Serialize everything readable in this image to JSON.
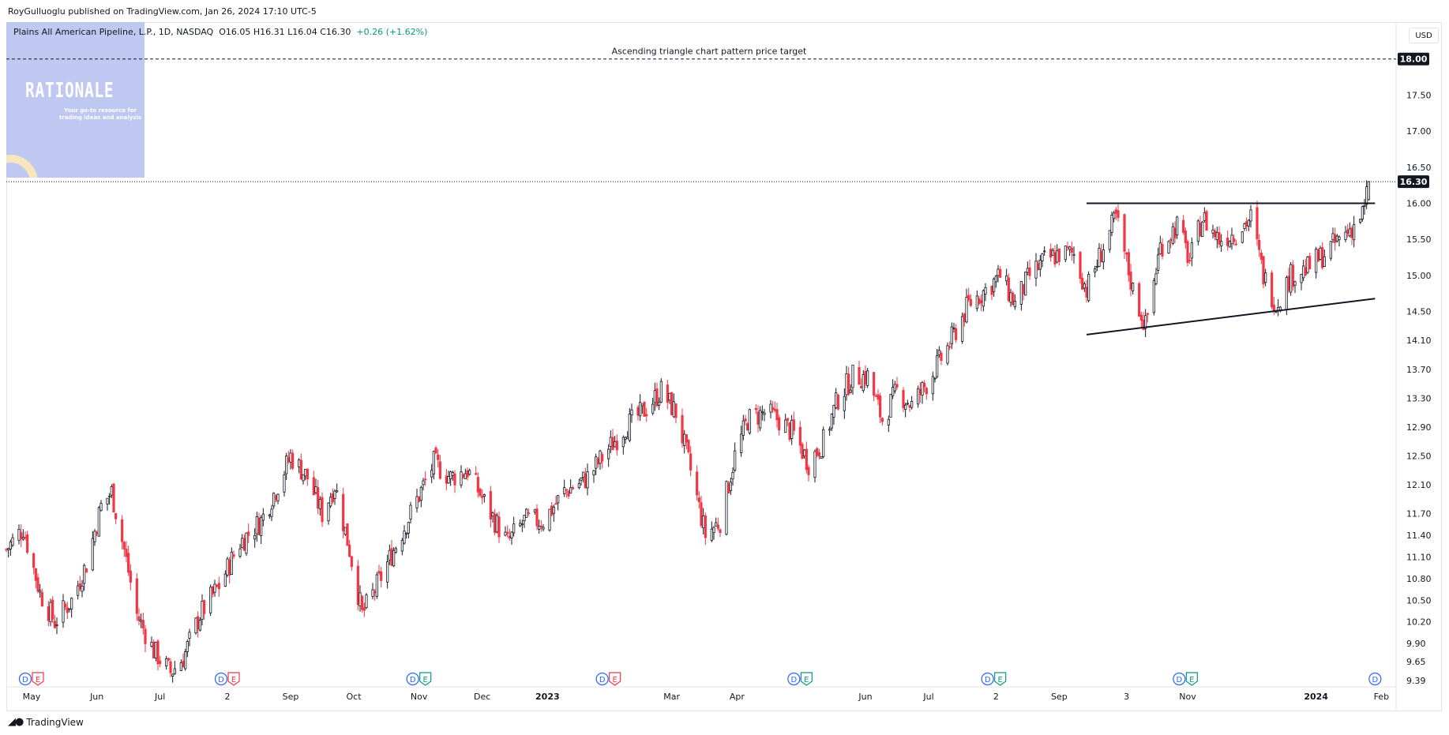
{
  "publisher": "RoyGulluoglu published on TradingView.com, Jan 26, 2024 17:10 UTC-5",
  "legend": {
    "symbol": "Plains All American Pipeline, L.P., 1D, NASDAQ",
    "ohlc": "O16.05  H16.31  L16.04  C16.30",
    "change": "+0.26 (+1.62%)"
  },
  "currency": "USD",
  "logo": {
    "title": "RATIONALE",
    "subtitle": "Your go-to resource for trading ideas and analysis"
  },
  "footer": {
    "brand": "TradingView"
  },
  "colors": {
    "up": "#131722",
    "down": "#f23645",
    "up_fill": "#ffffff",
    "grid_line": "#131722",
    "logo_bg": "#b9c4f0",
    "dividend_badge": "#2962ff",
    "earnings_up": "#089981",
    "earnings_down": "#f23645"
  },
  "chart_data": {
    "type": "candlestick",
    "title": "",
    "xlabel": "",
    "ylabel": "",
    "ylim": [
      9.3,
      18.5
    ],
    "grid": false,
    "y_ticks": [
      9.39,
      9.65,
      9.9,
      10.2,
      10.5,
      10.8,
      11.1,
      11.4,
      11.7,
      12.1,
      12.5,
      12.9,
      13.3,
      13.7,
      14.1,
      14.5,
      15.0,
      15.5,
      16.0,
      16.5,
      17.0,
      17.5
    ],
    "y_tick_labels": [
      "9.39",
      "9.65",
      "9.90",
      "10.20",
      "10.50",
      "10.80",
      "11.10",
      "11.40",
      "11.70",
      "12.10",
      "12.50",
      "12.90",
      "13.30",
      "13.70",
      "14.10",
      "14.50",
      "15.00",
      "15.50",
      "16.00",
      "16.50",
      "17.00",
      "17.50"
    ],
    "x_range": [
      "2022-04-19",
      "2024-02-08"
    ],
    "x_ticks": [
      {
        "date": "2022-05-01",
        "label": "May",
        "bold": false
      },
      {
        "date": "2022-06-01",
        "label": "Jun",
        "bold": false
      },
      {
        "date": "2022-07-01",
        "label": "Jul",
        "bold": false
      },
      {
        "date": "2022-08-02",
        "label": "2",
        "bold": false
      },
      {
        "date": "2022-09-01",
        "label": "Sep",
        "bold": false
      },
      {
        "date": "2022-10-01",
        "label": "Oct",
        "bold": false
      },
      {
        "date": "2022-11-01",
        "label": "Nov",
        "bold": false
      },
      {
        "date": "2022-12-01",
        "label": "Dec",
        "bold": false
      },
      {
        "date": "2023-01-01",
        "label": "2023",
        "bold": true
      },
      {
        "date": "2023-03-01",
        "label": "Mar",
        "bold": false
      },
      {
        "date": "2023-04-01",
        "label": "Apr",
        "bold": false
      },
      {
        "date": "2023-06-01",
        "label": "Jun",
        "bold": false
      },
      {
        "date": "2023-07-01",
        "label": "Jul",
        "bold": false
      },
      {
        "date": "2023-08-02",
        "label": "2",
        "bold": false
      },
      {
        "date": "2023-09-01",
        "label": "Sep",
        "bold": false
      },
      {
        "date": "2023-10-03",
        "label": "3",
        "bold": false
      },
      {
        "date": "2023-11-01",
        "label": "Nov",
        "bold": false
      },
      {
        "date": "2024-01-01",
        "label": "2024",
        "bold": true
      },
      {
        "date": "2024-02-01",
        "label": "Feb",
        "bold": false
      }
    ],
    "price_path": [
      [
        "2022-04-19",
        11.2
      ],
      [
        "2022-04-27",
        11.5
      ],
      [
        "2022-05-05",
        10.6
      ],
      [
        "2022-05-12",
        10.2
      ],
      [
        "2022-05-20",
        10.5
      ],
      [
        "2022-05-27",
        11.0
      ],
      [
        "2022-06-03",
        11.8
      ],
      [
        "2022-06-08",
        12.0
      ],
      [
        "2022-06-14",
        11.2
      ],
      [
        "2022-06-20",
        10.3
      ],
      [
        "2022-06-28",
        9.8
      ],
      [
        "2022-07-06",
        9.5
      ],
      [
        "2022-07-12",
        9.7
      ],
      [
        "2022-07-20",
        10.3
      ],
      [
        "2022-07-29",
        10.7
      ],
      [
        "2022-08-08",
        11.3
      ],
      [
        "2022-08-18",
        11.6
      ],
      [
        "2022-08-26",
        12.1
      ],
      [
        "2022-09-01",
        12.5
      ],
      [
        "2022-09-09",
        12.2
      ],
      [
        "2022-09-16",
        11.7
      ],
      [
        "2022-09-22",
        12.1
      ],
      [
        "2022-09-29",
        11.2
      ],
      [
        "2022-10-05",
        10.3
      ],
      [
        "2022-10-12",
        10.7
      ],
      [
        "2022-10-20",
        11.2
      ],
      [
        "2022-10-28",
        11.7
      ],
      [
        "2022-11-08",
        12.4
      ],
      [
        "2022-11-16",
        12.2
      ],
      [
        "2022-11-24",
        12.3
      ],
      [
        "2022-12-05",
        11.7
      ],
      [
        "2022-12-13",
        11.3
      ],
      [
        "2022-12-21",
        11.6
      ],
      [
        "2022-12-30",
        11.6
      ],
      [
        "2023-01-09",
        12.0
      ],
      [
        "2023-01-20",
        12.2
      ],
      [
        "2023-01-30",
        12.6
      ],
      [
        "2023-02-07",
        12.9
      ],
      [
        "2023-02-15",
        13.1
      ],
      [
        "2023-02-24",
        13.4
      ],
      [
        "2023-03-03",
        13.1
      ],
      [
        "2023-03-10",
        12.3
      ],
      [
        "2023-03-17",
        11.4
      ],
      [
        "2023-03-24",
        11.6
      ],
      [
        "2023-03-31",
        12.5
      ],
      [
        "2023-04-06",
        13.0
      ],
      [
        "2023-04-14",
        13.1
      ],
      [
        "2023-04-21",
        13.0
      ],
      [
        "2023-04-28",
        12.8
      ],
      [
        "2023-05-05",
        12.4
      ],
      [
        "2023-05-12",
        12.7
      ],
      [
        "2023-05-19",
        13.3
      ],
      [
        "2023-05-26",
        13.6
      ],
      [
        "2023-06-02",
        13.6
      ],
      [
        "2023-06-09",
        13.0
      ],
      [
        "2023-06-16",
        13.4
      ],
      [
        "2023-06-23",
        13.2
      ],
      [
        "2023-06-30",
        13.5
      ],
      [
        "2023-07-10",
        14.0
      ],
      [
        "2023-07-20",
        14.6
      ],
      [
        "2023-07-28",
        14.8
      ],
      [
        "2023-08-04",
        15.0
      ],
      [
        "2023-08-11",
        14.6
      ],
      [
        "2023-08-18",
        15.0
      ],
      [
        "2023-08-25",
        15.2
      ],
      [
        "2023-09-01",
        15.3
      ],
      [
        "2023-09-08",
        15.3
      ],
      [
        "2023-09-14",
        14.8
      ],
      [
        "2023-09-22",
        15.4
      ],
      [
        "2023-09-28",
        15.8
      ],
      [
        "2023-10-06",
        14.8
      ],
      [
        "2023-10-12",
        14.3
      ],
      [
        "2023-10-19",
        15.4
      ],
      [
        "2023-10-27",
        15.7
      ],
      [
        "2023-11-02",
        15.2
      ],
      [
        "2023-11-08",
        15.8
      ],
      [
        "2023-11-16",
        15.5
      ],
      [
        "2023-11-24",
        15.6
      ],
      [
        "2023-12-01",
        15.8
      ],
      [
        "2023-12-07",
        15.0
      ],
      [
        "2023-12-13",
        14.6
      ],
      [
        "2023-12-20",
        15.0
      ],
      [
        "2023-12-28",
        15.1
      ],
      [
        "2024-01-05",
        15.3
      ],
      [
        "2024-01-12",
        15.5
      ],
      [
        "2024-01-19",
        15.7
      ],
      [
        "2024-01-24",
        15.9
      ],
      [
        "2024-01-26",
        16.3
      ]
    ],
    "current_price": {
      "value": 16.3,
      "label": "16.30"
    },
    "annotations": [
      {
        "type": "hline",
        "value": 18.0,
        "style": "dashed",
        "label": "Ascending triangle chart pattern price target",
        "price_label": "18.00"
      },
      {
        "type": "segment",
        "name": "resistance",
        "from": [
          "2023-09-14",
          16.0
        ],
        "to": [
          "2024-01-29",
          16.0
        ]
      },
      {
        "type": "segment",
        "name": "support",
        "from": [
          "2023-09-14",
          14.18
        ],
        "to": [
          "2024-01-29",
          14.68
        ]
      }
    ],
    "events": [
      {
        "date": "2022-05-01",
        "kinds": [
          "D",
          "E"
        ],
        "earnings": "down"
      },
      {
        "date": "2022-08-02",
        "kinds": [
          "D",
          "E"
        ],
        "earnings": "down"
      },
      {
        "date": "2022-11-01",
        "kinds": [
          "D",
          "E"
        ],
        "earnings": "up"
      },
      {
        "date": "2023-01-30",
        "kinds": [
          "D",
          "E"
        ],
        "earnings": "down"
      },
      {
        "date": "2023-05-01",
        "kinds": [
          "D",
          "E"
        ],
        "earnings": "up"
      },
      {
        "date": "2023-08-01",
        "kinds": [
          "D",
          "E"
        ],
        "earnings": "up"
      },
      {
        "date": "2023-10-31",
        "kinds": [
          "D",
          "E"
        ],
        "earnings": "up"
      },
      {
        "date": "2024-01-29",
        "kinds": [
          "D"
        ],
        "earnings": "none"
      }
    ]
  }
}
